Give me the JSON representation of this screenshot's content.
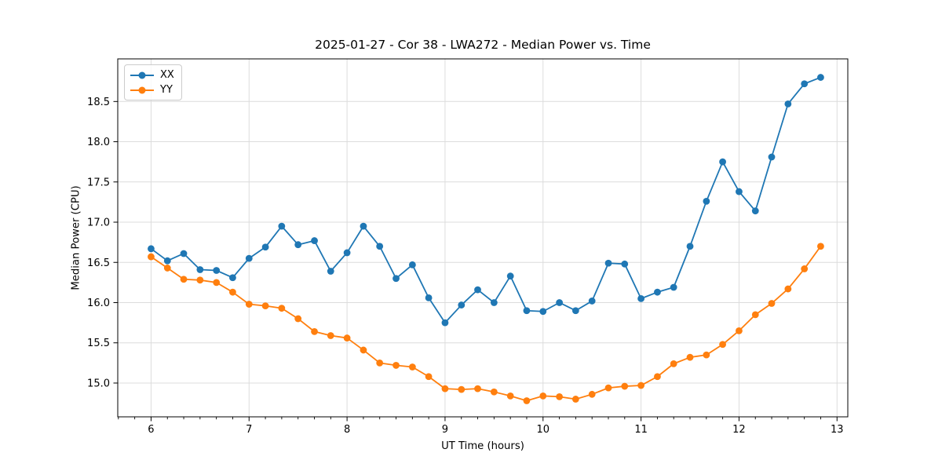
{
  "chart_data": {
    "type": "line",
    "title": "2025-01-27 - Cor 38 - LWA272 - Median Power vs. Time",
    "xlabel": "UT Time (hours)",
    "ylabel": "Median Power (CPU)",
    "grid": true,
    "legend_position": "upper left",
    "marker": "circle",
    "xlim": [
      5.66,
      13.11
    ],
    "ylim": [
      14.58,
      19.03
    ],
    "xticks": [
      6,
      7,
      8,
      9,
      10,
      11,
      12,
      13
    ],
    "yticks": [
      15.0,
      15.5,
      16.0,
      16.5,
      17.0,
      17.5,
      18.0,
      18.5
    ],
    "x_minor_step": 0.1667,
    "x": [
      6.0,
      6.167,
      6.333,
      6.5,
      6.667,
      6.833,
      7.0,
      7.167,
      7.333,
      7.5,
      7.667,
      7.833,
      8.0,
      8.167,
      8.333,
      8.5,
      8.667,
      8.833,
      9.0,
      9.167,
      9.333,
      9.5,
      9.667,
      9.833,
      10.0,
      10.167,
      10.333,
      10.5,
      10.667,
      10.833,
      11.0,
      11.167,
      11.333,
      11.5,
      11.667,
      11.833,
      12.0,
      12.167,
      12.333,
      12.5,
      12.667,
      12.833
    ],
    "series": [
      {
        "name": "XX",
        "color": "#1f77b4",
        "values": [
          16.67,
          16.52,
          16.61,
          16.41,
          16.4,
          16.31,
          16.55,
          16.69,
          16.95,
          16.72,
          16.77,
          16.39,
          16.62,
          16.95,
          16.7,
          16.3,
          16.47,
          16.06,
          15.75,
          15.97,
          16.16,
          16.0,
          16.33,
          15.9,
          15.89,
          16.0,
          15.9,
          16.02,
          16.49,
          16.48,
          16.05,
          16.13,
          16.19,
          16.7,
          17.26,
          17.75,
          17.38,
          17.14,
          17.81,
          18.47,
          18.72,
          18.8
        ]
      },
      {
        "name": "YY",
        "color": "#ff7f0e",
        "values": [
          16.57,
          16.43,
          16.29,
          16.28,
          16.25,
          16.13,
          15.98,
          15.96,
          15.93,
          15.8,
          15.64,
          15.59,
          15.56,
          15.41,
          15.25,
          15.22,
          15.2,
          15.08,
          14.93,
          14.92,
          14.93,
          14.89,
          14.84,
          14.78,
          14.84,
          14.83,
          14.8,
          14.86,
          14.94,
          14.96,
          14.97,
          15.08,
          15.24,
          15.32,
          15.35,
          15.48,
          15.65,
          15.85,
          15.99,
          16.17,
          16.42,
          16.7
        ]
      }
    ]
  }
}
